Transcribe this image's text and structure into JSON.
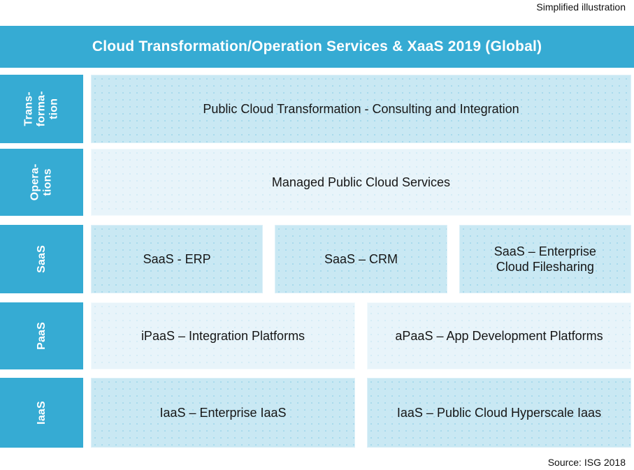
{
  "annotations": {
    "top_right": "Simplified illustration",
    "bottom_right": "Source: ISG 2018"
  },
  "header": {
    "title": "Cloud Transformation/Operation Services & XaaS 2019 (Global)"
  },
  "colors": {
    "primary_blue": "#36ABD3",
    "box_blue": "#C9E8F3",
    "box_light": "#E8F4FA",
    "text_dark": "#161616",
    "title_white": "#FFFFFF"
  },
  "rows": [
    {
      "label": "Trans-\nforma-\ntion",
      "tone": "dark",
      "boxes": [
        "Public Cloud Transformation - Consulting and Integration"
      ]
    },
    {
      "label": "Opera-\ntions",
      "tone": "light",
      "boxes": [
        "Managed Public Cloud Services"
      ]
    },
    {
      "label": "SaaS",
      "tone": "dark",
      "boxes": [
        "SaaS - ERP",
        "SaaS – CRM",
        "SaaS – Enterprise Cloud Filesharing"
      ]
    },
    {
      "label": "PaaS",
      "tone": "light",
      "boxes": [
        "iPaaS – Integration Platforms",
        "aPaaS – App Development Platforms"
      ]
    },
    {
      "label": "IaaS",
      "tone": "dark",
      "boxes": [
        "IaaS – Enterprise IaaS",
        "IaaS – Public Cloud Hyperscale Iaas"
      ]
    }
  ]
}
